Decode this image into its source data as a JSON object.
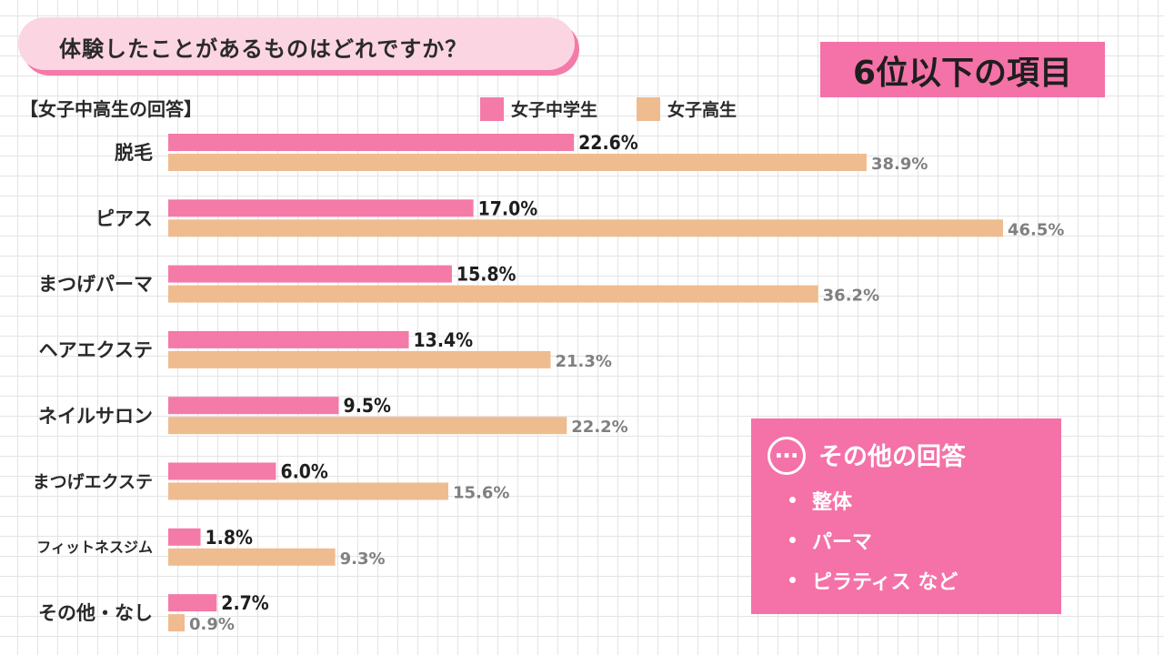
{
  "header": {
    "question": "体験したことがあるものはどれですか？",
    "rank_badge": "6位以下の項目",
    "subtitle": "【女子中高生の回答】"
  },
  "colors": {
    "junior_high": "#f47aa8",
    "high_school": "#efbc8f",
    "accent_box": "#f472a7",
    "question_bg": "#fcd5e2"
  },
  "legend": [
    {
      "label": "女子中学生",
      "color": "#f47aa8"
    },
    {
      "label": "女子高生",
      "color": "#efbc8f"
    }
  ],
  "chart_data": {
    "type": "bar",
    "orientation": "horizontal",
    "categories": [
      "脱毛",
      "ピアス",
      "まつげパーマ",
      "ヘアエクステ",
      "ネイルサロン",
      "まつげエクステ",
      "フィットネスジム",
      "その他・なし"
    ],
    "series": [
      {
        "name": "女子中学生",
        "values": [
          22.6,
          17.0,
          15.8,
          13.4,
          9.5,
          6.0,
          1.8,
          2.7
        ],
        "labels": [
          "22.6%",
          "17.0%",
          "15.8%",
          "13.4%",
          "9.5%",
          "6.0%",
          "1.8%",
          "2.7%"
        ]
      },
      {
        "name": "女子高生",
        "values": [
          38.9,
          46.5,
          36.2,
          21.3,
          22.2,
          15.6,
          9.3,
          0.9
        ],
        "labels": [
          "38.9%",
          "46.5%",
          "36.2%",
          "21.3%",
          "22.2%",
          "15.6%",
          "9.3%",
          "0.9%"
        ]
      }
    ],
    "xlim": [
      0,
      50
    ],
    "legend_position": "top",
    "grid": false
  },
  "other_answers": {
    "icon": "ellipsis-circle-icon",
    "title": "その他の回答",
    "items": [
      "整体",
      "パーマ",
      "ピラティス など"
    ]
  }
}
